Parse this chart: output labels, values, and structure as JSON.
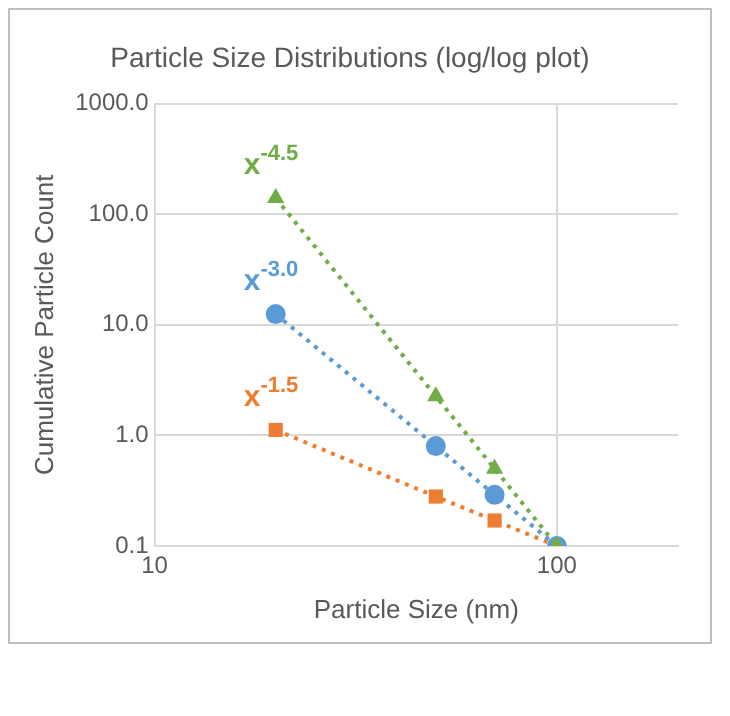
{
  "chart_data": {
    "type": "line",
    "title": "Particle Size Distributions (log/log plot)",
    "xlabel": "Particle Size (nm)",
    "ylabel": "Cumulative Particle Count",
    "x": [
      20,
      50,
      70,
      100
    ],
    "series": [
      {
        "name": "x$^{-4.5}$",
        "color": "#70ad47",
        "marker": "triangle",
        "values": [
          140,
          2.26,
          0.5,
          0.1
        ]
      },
      {
        "name": "x$^{-3.0}$",
        "color": "#5b9bd5",
        "marker": "circle",
        "values": [
          12.5,
          0.8,
          0.29,
          0.1
        ]
      },
      {
        "name": "x$^{-1.5}$",
        "color": "#ed7d31",
        "marker": "square",
        "values": [
          1.12,
          0.28,
          0.17,
          0.1
        ]
      }
    ],
    "log": "xy",
    "xlim": [
      10,
      200
    ],
    "xticks": [
      10,
      100
    ],
    "ylim": [
      0.1,
      1000
    ],
    "yticks": [
      {
        "value": 0.1,
        "label": "0.1"
      },
      {
        "value": 1,
        "label": "1.0"
      },
      {
        "value": 10,
        "label": "10.0"
      },
      {
        "value": 100,
        "label": "100.0"
      },
      {
        "value": 1000,
        "label": "1000.0"
      }
    ],
    "grid": true,
    "legend": false,
    "line_style": "dotted"
  }
}
